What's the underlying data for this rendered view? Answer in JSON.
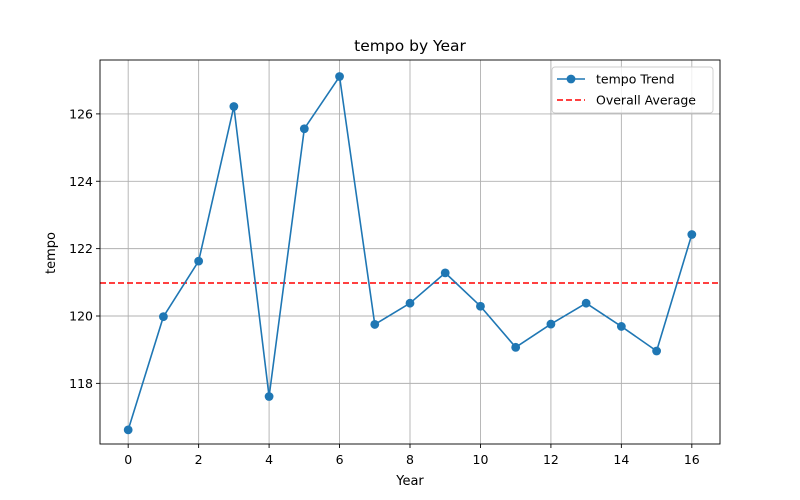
{
  "chart_data": {
    "type": "line",
    "title": "tempo by Year",
    "xlabel": "Year",
    "ylabel": "tempo",
    "xlim": [
      -0.8,
      16.8
    ],
    "ylim": [
      116.2,
      127.6
    ],
    "xticks": [
      0,
      2,
      4,
      6,
      8,
      10,
      12,
      14,
      16
    ],
    "yticks": [
      118,
      120,
      122,
      124,
      126
    ],
    "grid": true,
    "legend_position": "top-right",
    "series": [
      {
        "name": "tempo Trend",
        "color": "#1f77b4",
        "marker": "circle",
        "x": [
          0,
          1,
          2,
          3,
          4,
          5,
          6,
          7,
          8,
          9,
          10,
          11,
          12,
          13,
          14,
          15,
          16
        ],
        "y": [
          116.62,
          119.98,
          121.63,
          126.22,
          117.61,
          125.56,
          127.11,
          119.75,
          120.38,
          121.28,
          120.29,
          119.07,
          119.76,
          120.38,
          119.69,
          118.96,
          122.42
        ]
      }
    ],
    "reference_lines": [
      {
        "name": "Overall Average",
        "orientation": "horizontal",
        "value": 120.98,
        "color": "#ff0000",
        "style": "dashed"
      }
    ]
  }
}
